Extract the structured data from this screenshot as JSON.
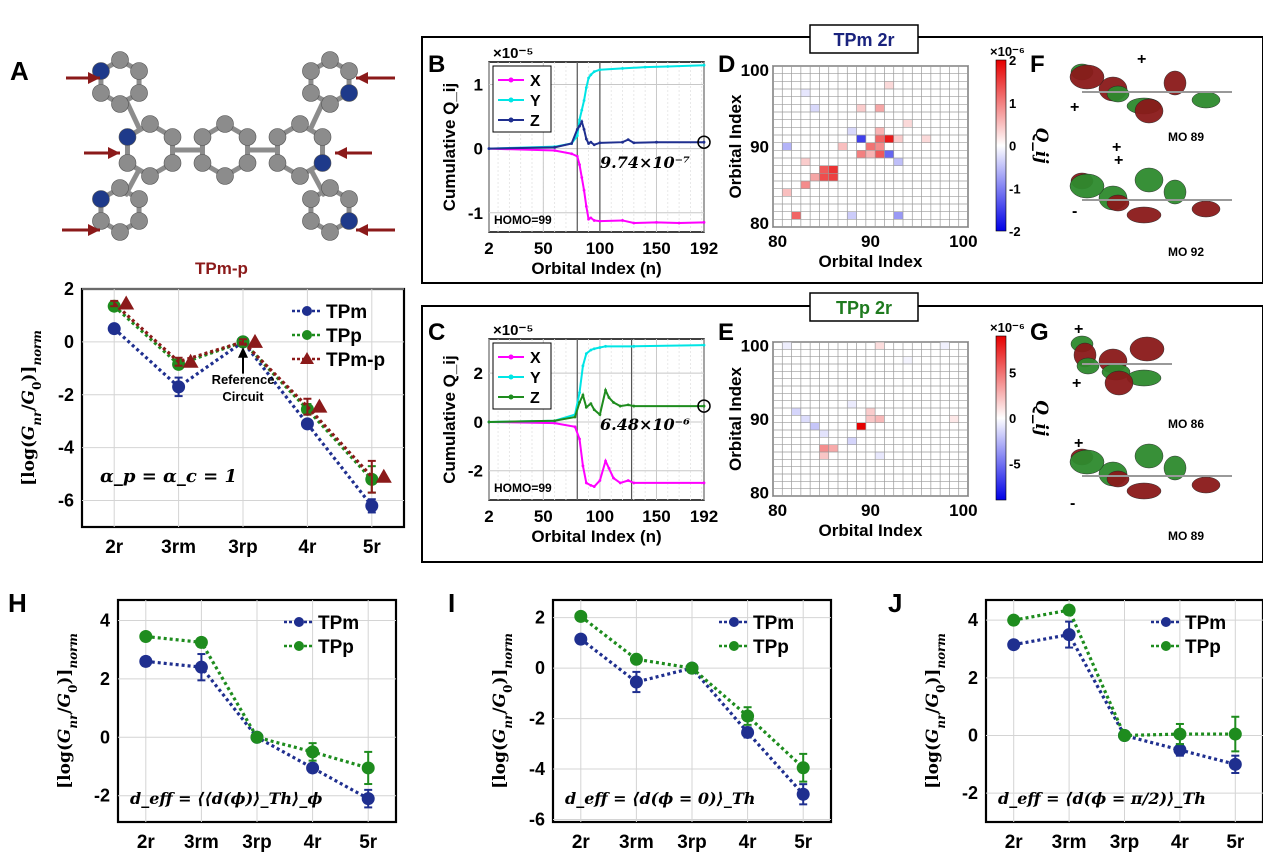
{
  "panel_letters": {
    "A": "A",
    "B": "B",
    "C": "C",
    "D": "D",
    "E": "E",
    "F": "F",
    "G": "G",
    "H": "H",
    "I": "I",
    "J": "J"
  },
  "molecule": {
    "label": "TPm-p",
    "arrow_color": "#8b1a1a",
    "atom_color": "#8c8c8c",
    "nitrogen_color": "#1e3a8a"
  },
  "box_titles": {
    "top": "TPm 2r",
    "bottom": "TPp 2r",
    "top_color": "#1a237e",
    "bottom_color": "#1e7a1e"
  },
  "colors": {
    "tpm": "#1f2f8f",
    "tpp": "#1e8c1e",
    "tpmp": "#8b1a1a",
    "x": "#ff00ff",
    "y": "#00e5e5",
    "z_top": "#1f2f8f",
    "z_bottom": "#1e8c1e"
  },
  "chart_data": [
    {
      "id": "A",
      "type": "line",
      "categories": [
        "2r",
        "3rm",
        "3rp",
        "4r",
        "5r"
      ],
      "ylabel": "[log(G_nr/G_0)]_norm",
      "ylim": [
        -7,
        2
      ],
      "yticks": [
        "2",
        "0",
        "-2",
        "-4",
        "-6"
      ],
      "series": [
        {
          "name": "TPm",
          "values": [
            0.5,
            -1.7,
            0.0,
            -3.1,
            -6.2
          ],
          "errors": [
            0.15,
            0.35,
            0.1,
            0.15,
            0.25
          ]
        },
        {
          "name": "TPp",
          "values": [
            1.35,
            -0.85,
            0.0,
            -2.55,
            -5.2
          ],
          "errors": [
            0.1,
            0.15,
            0.1,
            0.2,
            0.5
          ]
        },
        {
          "name": "TPm-p",
          "values": [
            1.45,
            -0.75,
            0.0,
            -2.45,
            -5.1
          ],
          "errors": [
            0.1,
            0.15,
            0.1,
            0.3,
            0.6
          ]
        }
      ],
      "annotation": "Reference Circuit",
      "formula": "α_p = α_c = 1",
      "legend": "top-right"
    },
    {
      "id": "B",
      "type": "line",
      "xlabel": "Orbital Index (n)",
      "ylabel": "Cumulative Q_ij",
      "exponent": "×10⁻⁵",
      "xlim": [
        2,
        192
      ],
      "xticks": [
        "2",
        "50",
        "100",
        "150",
        "192"
      ],
      "ylim": [
        -1.3,
        1.35
      ],
      "yticks": [
        "1",
        "0",
        "-1"
      ],
      "vlines": [
        80,
        100
      ],
      "series": [
        {
          "name": "X",
          "x": [
            2,
            60,
            75,
            80,
            82,
            84,
            86,
            88,
            90,
            92,
            95,
            100,
            120,
            130,
            150,
            170,
            192
          ],
          "values": [
            0.0,
            -0.03,
            -0.08,
            -0.12,
            -0.25,
            -0.45,
            -0.65,
            -0.9,
            -1.1,
            -1.08,
            -1.12,
            -1.13,
            -1.12,
            -1.16,
            -1.15,
            -1.16,
            -1.15
          ]
        },
        {
          "name": "Y",
          "x": [
            2,
            60,
            75,
            80,
            82,
            84,
            86,
            88,
            90,
            92,
            95,
            100,
            120,
            140,
            160,
            192
          ],
          "values": [
            0.0,
            0.03,
            0.08,
            0.2,
            0.45,
            0.6,
            0.75,
            0.95,
            1.1,
            1.15,
            1.2,
            1.23,
            1.25,
            1.27,
            1.28,
            1.3
          ]
        },
        {
          "name": "Z",
          "x": [
            2,
            60,
            75,
            80,
            82,
            84,
            86,
            88,
            90,
            92,
            95,
            100,
            120,
            125,
            130,
            150,
            192
          ],
          "values": [
            0.0,
            0.02,
            0.08,
            0.3,
            0.35,
            0.42,
            0.3,
            0.15,
            0.08,
            0.1,
            0.06,
            0.09,
            0.1,
            0.14,
            0.09,
            0.1,
            0.1
          ]
        }
      ],
      "final_value": "9.74×10⁻⁷",
      "note": "HOMO=99",
      "legend": "top-left"
    },
    {
      "id": "C",
      "type": "line",
      "xlabel": "Orbital Index (n)",
      "ylabel": "Cumulative Q_ij",
      "exponent": "×10⁻⁵",
      "xlim": [
        2,
        192
      ],
      "xticks": [
        "2",
        "50",
        "100",
        "150",
        "192"
      ],
      "ylim": [
        -3.2,
        3.4
      ],
      "yticks": [
        "2",
        "0",
        "-2"
      ],
      "vlines": [
        80,
        128
      ],
      "series": [
        {
          "name": "X",
          "x": [
            2,
            60,
            78,
            82,
            85,
            88,
            92,
            95,
            100,
            105,
            108,
            112,
            118,
            125,
            130,
            192
          ],
          "values": [
            0.0,
            -0.05,
            -0.2,
            -0.7,
            -1.8,
            -2.5,
            -2.6,
            -2.65,
            -2.4,
            -1.6,
            -1.9,
            -2.3,
            -2.5,
            -2.4,
            -2.5,
            -2.5
          ]
        },
        {
          "name": "Y",
          "x": [
            2,
            60,
            78,
            82,
            85,
            88,
            92,
            95,
            100,
            105,
            130,
            192
          ],
          "values": [
            0.0,
            0.05,
            0.3,
            1.2,
            2.3,
            2.8,
            2.95,
            3.0,
            3.05,
            3.1,
            3.1,
            3.15
          ]
        },
        {
          "name": "Z",
          "x": [
            2,
            60,
            78,
            82,
            85,
            88,
            92,
            95,
            100,
            105,
            108,
            112,
            118,
            125,
            130,
            192
          ],
          "values": [
            0.0,
            0.05,
            0.2,
            0.8,
            1.1,
            0.6,
            0.75,
            0.5,
            0.3,
            1.3,
            1.0,
            0.8,
            0.65,
            0.7,
            0.65,
            0.65
          ]
        }
      ],
      "final_value": "6.48×10⁻⁶",
      "note": "HOMO=99",
      "legend": "top-left"
    },
    {
      "id": "D",
      "type": "heatmap",
      "xlabel": "Orbital Index",
      "ylabel": "Orbital Index",
      "xlim": [
        80,
        100
      ],
      "ylim": [
        80,
        100
      ],
      "xticks": [
        "80",
        "90",
        "100"
      ],
      "yticks": [
        "100",
        "90",
        "80"
      ],
      "colorbar_label": "Q_ij",
      "exponent": "×10⁻⁶",
      "colorbar_ticks": [
        "2",
        "1",
        "0",
        "-1",
        "-2"
      ],
      "clim": [
        -2,
        2
      ],
      "cells": [
        [
          82,
          81,
          1.2
        ],
        [
          93,
          81,
          -0.8
        ],
        [
          88,
          81,
          -0.4
        ],
        [
          81,
          84,
          0.5
        ],
        [
          83,
          85,
          0.9
        ],
        [
          84,
          86,
          0.7
        ],
        [
          85,
          86,
          1.4
        ],
        [
          86,
          86,
          1.5
        ],
        [
          85,
          87,
          1.3
        ],
        [
          86,
          87,
          1.6
        ],
        [
          83,
          88,
          0.4
        ],
        [
          93,
          88,
          -0.5
        ],
        [
          89,
          89,
          1.0
        ],
        [
          90,
          89,
          0.6
        ],
        [
          91,
          89,
          1.3
        ],
        [
          92,
          89,
          -1.2
        ],
        [
          81,
          90,
          -0.6
        ],
        [
          87,
          90,
          0.5
        ],
        [
          90,
          90,
          1.1
        ],
        [
          91,
          90,
          0.9
        ],
        [
          89,
          91,
          -1.5
        ],
        [
          91,
          91,
          1.2
        ],
        [
          92,
          91,
          1.8
        ],
        [
          93,
          91,
          0.4
        ],
        [
          96,
          91,
          0.3
        ],
        [
          88,
          92,
          -0.3
        ],
        [
          91,
          92,
          0.6
        ],
        [
          94,
          93,
          0.3
        ],
        [
          84,
          95,
          -0.3
        ],
        [
          89,
          95,
          0.4
        ],
        [
          91,
          95,
          0.7
        ],
        [
          83,
          97,
          -0.2
        ],
        [
          92,
          98,
          0.3
        ]
      ]
    },
    {
      "id": "E",
      "type": "heatmap",
      "xlabel": "Orbital Index",
      "ylabel": "Orbital Index",
      "xlim": [
        80,
        100
      ],
      "ylim": [
        80,
        100
      ],
      "xticks": [
        "80",
        "90",
        "100"
      ],
      "yticks": [
        "100",
        "90",
        "80"
      ],
      "colorbar_label": "Q_ij",
      "exponent": "×10⁻⁶",
      "colorbar_ticks": [
        "5",
        "0",
        "-5"
      ],
      "clim": [
        -9,
        9
      ],
      "cells": [
        [
          89,
          89,
          9.0
        ],
        [
          90,
          90,
          2.0
        ],
        [
          91,
          90,
          2.5
        ],
        [
          90,
          91,
          1.8
        ],
        [
          85,
          86,
          4.0
        ],
        [
          86,
          86,
          3.0
        ],
        [
          85,
          85,
          2.0
        ],
        [
          82,
          91,
          -1.5
        ],
        [
          83,
          90,
          -1.2
        ],
        [
          84,
          89,
          -2.0
        ],
        [
          85,
          88,
          -1.0
        ],
        [
          88,
          87,
          -1.5
        ],
        [
          91,
          85,
          -0.8
        ],
        [
          81,
          100,
          -0.6
        ],
        [
          91,
          100,
          1.2
        ],
        [
          98,
          100,
          -0.5
        ],
        [
          99,
          90,
          0.8
        ],
        [
          88,
          92,
          -0.7
        ],
        [
          94,
          98,
          -0.4
        ]
      ]
    },
    {
      "id": "H",
      "type": "line",
      "categories": [
        "2r",
        "3rm",
        "3rp",
        "4r",
        "5r"
      ],
      "ylabel": "[log(G_nr/G_0)]_norm",
      "ylim": [
        -2.9,
        4.7
      ],
      "yticks": [
        "4",
        "2",
        "0",
        "-2"
      ],
      "series": [
        {
          "name": "TPm",
          "values": [
            2.6,
            2.4,
            0.0,
            -1.05,
            -2.1
          ],
          "errors": [
            0.15,
            0.45,
            0.1,
            0.15,
            0.3
          ]
        },
        {
          "name": "TPp",
          "values": [
            3.45,
            3.25,
            0.0,
            -0.5,
            -1.05
          ],
          "errors": [
            0.1,
            0.15,
            0.1,
            0.3,
            0.55
          ]
        }
      ],
      "formula": "d_eff = ⟨⟨d(ϕ)⟩_Th⟩_ϕ",
      "legend": "top-right"
    },
    {
      "id": "I",
      "type": "line",
      "categories": [
        "2r",
        "3rm",
        "3rp",
        "4r",
        "5r"
      ],
      "ylabel": "[log(G_nr/G_0)]_norm",
      "ylim": [
        -6.1,
        2.7
      ],
      "yticks": [
        "2",
        "0",
        "-2",
        "-4",
        "-6"
      ],
      "series": [
        {
          "name": "TPm",
          "values": [
            1.15,
            -0.55,
            0.0,
            -2.55,
            -5.0
          ],
          "errors": [
            0.15,
            0.4,
            0.1,
            0.2,
            0.4
          ]
        },
        {
          "name": "TPp",
          "values": [
            2.05,
            0.35,
            0.0,
            -1.9,
            -3.95
          ],
          "errors": [
            0.1,
            0.15,
            0.1,
            0.35,
            0.55
          ]
        }
      ],
      "formula": "d_eff = ⟨d(ϕ = 0)⟩_Th",
      "legend": "top-right"
    },
    {
      "id": "J",
      "type": "line",
      "categories": [
        "2r",
        "3rm",
        "3rp",
        "4r",
        "5r"
      ],
      "ylabel": "[log(G_nr/G_0)]_norm",
      "ylim": [
        -3.0,
        4.7
      ],
      "yticks": [
        "4",
        "2",
        "0",
        "-2"
      ],
      "series": [
        {
          "name": "TPm",
          "values": [
            3.15,
            3.5,
            0.0,
            -0.5,
            -1.0
          ],
          "errors": [
            0.1,
            0.45,
            0.1,
            0.2,
            0.3
          ]
        },
        {
          "name": "TPp",
          "values": [
            4.0,
            4.35,
            0.0,
            0.05,
            0.05
          ],
          "errors": [
            0.1,
            0.15,
            0.1,
            0.35,
            0.6
          ]
        }
      ],
      "formula": "d_eff = ⟨d(ϕ = π/2)⟩_Th",
      "legend": "top-right"
    }
  ],
  "orbitals": {
    "F": [
      {
        "label": "MO 89",
        "markers": [
          "+",
          "+",
          "+"
        ]
      },
      {
        "label": "MO 92",
        "markers": [
          "+",
          "-"
        ]
      }
    ],
    "G": [
      {
        "label": "MO 86",
        "markers": [
          "+",
          "+"
        ]
      },
      {
        "label": "MO 89",
        "markers": [
          "+",
          "-"
        ]
      }
    ]
  }
}
